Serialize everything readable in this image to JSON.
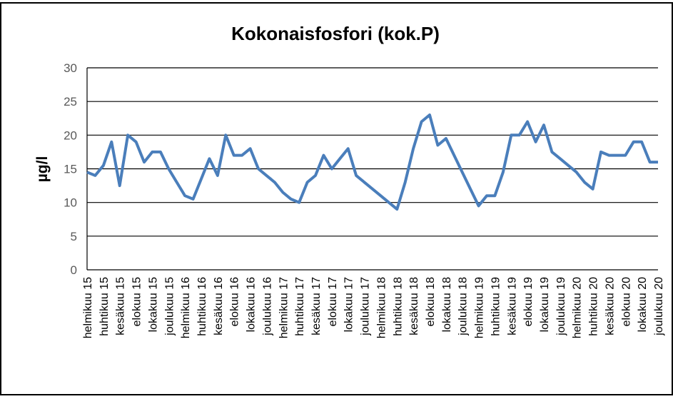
{
  "chart_data": {
    "type": "line",
    "title": "Kokonaisfosfori (kok.P)",
    "y_label": "µg/l",
    "categories": [
      "helmikuu 15",
      null,
      "huhtikuu 15",
      null,
      "kesäkuu 15",
      null,
      "elokuu 15",
      null,
      "lokakuu 15",
      null,
      "joulukuu 15",
      null,
      "helmikuu 16",
      null,
      "huhtikuu 16",
      null,
      "kesäkuu 16",
      null,
      "elokuu 16",
      null,
      "lokakuu 16",
      null,
      "joulukuu 16",
      null,
      "helmikuu 17",
      null,
      "huhtikuu 17",
      null,
      "kesäkuu 17",
      null,
      "elokuu 17",
      null,
      "lokakuu 17",
      null,
      "joulukuu 17",
      null,
      "helmikuu 18",
      null,
      "huhtikuu 18",
      null,
      "kesäkuu 18",
      null,
      "elokuu 18",
      null,
      "lokakuu 18",
      null,
      "joulukuu 18",
      null,
      "helmikuu 19",
      null,
      "huhtikuu 19",
      null,
      "kesäkuu 19",
      null,
      "elokuu 19",
      null,
      "lokakuu 19",
      null,
      "joulukuu 19",
      null,
      "helmikuu 20",
      null,
      "huhtikuu 20",
      null,
      "kesäkuu 20",
      null,
      "elokuu 20",
      null,
      "lokakuu 20",
      null,
      "joulukuu 20"
    ],
    "series": [
      {
        "name": "Kokonaisfosfori",
        "color": "#4a7ebb",
        "values": [
          14.5,
          14,
          15.5,
          19,
          12.5,
          20,
          19,
          16,
          17.5,
          17.5,
          15,
          13,
          11,
          10.5,
          13.5,
          16.5,
          14,
          20,
          17,
          17,
          18,
          15,
          14,
          13,
          11.5,
          10.5,
          10,
          13,
          14,
          17,
          15,
          16.5,
          18,
          14,
          13,
          12,
          11,
          10,
          9,
          13,
          18,
          22,
          23,
          18.5,
          19.5,
          17,
          14.5,
          12,
          9.5,
          11,
          11,
          14.5,
          20,
          20,
          22,
          19,
          21.5,
          17.5,
          16.5,
          15.5,
          14.5,
          13,
          12,
          17.5,
          17,
          17,
          17,
          19,
          19,
          16,
          16
        ]
      }
    ],
    "ylim": [
      0,
      30
    ],
    "yticks": [
      0,
      5,
      10,
      15,
      20,
      25,
      30
    ],
    "grid": true
  }
}
